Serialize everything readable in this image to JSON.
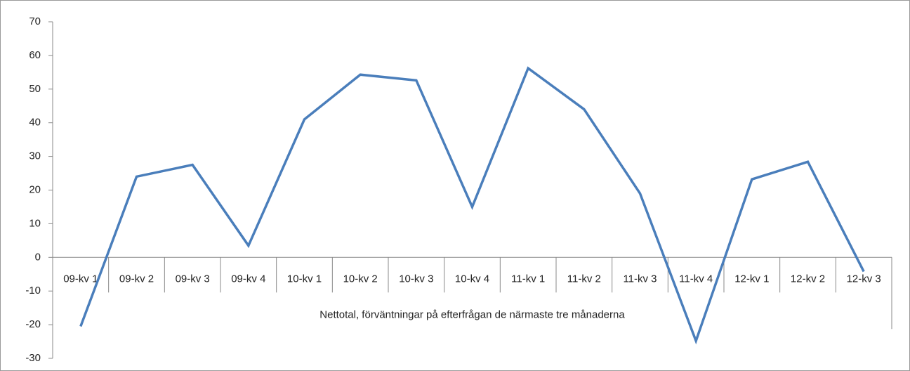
{
  "chart_data": {
    "type": "line",
    "xlabel": "Nettotal, förväntningar på efterfrågan de närmaste tre månaderna",
    "categories": [
      "09-kv 1",
      "09-kv 2",
      "09-kv 3",
      "09-kv 4",
      "10-kv 1",
      "10-kv 2",
      "10-kv 3",
      "10-kv 4",
      "11-kv 1",
      "11-kv 2",
      "11-kv 3",
      "11-kv 4",
      "12-kv 1",
      "12-kv 2",
      "12-kv 3"
    ],
    "series": [
      {
        "color": "#4a7ebb",
        "values": [
          -20.5,
          24,
          27.5,
          3.5,
          41,
          54.3,
          52.6,
          15,
          56.2,
          44,
          19,
          -24.8,
          23.2,
          28.4,
          -4.2
        ]
      }
    ],
    "ylim": [
      -30,
      70
    ],
    "yticks": [
      -30,
      -20,
      -10,
      0,
      10,
      20,
      30,
      40,
      50,
      60,
      70
    ],
    "grid": false
  }
}
